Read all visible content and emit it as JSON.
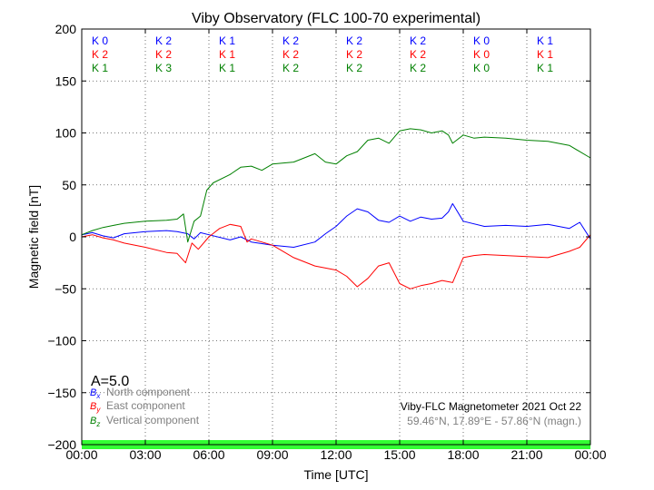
{
  "chart_data": {
    "type": "line",
    "title": "Viby Observatory (FLC 100-70 experimental)",
    "xlabel": "Time [UTC]",
    "ylabel": "Magnetic field [nT]",
    "xlim": [
      0,
      24
    ],
    "ylim": [
      -200,
      200
    ],
    "grid": true,
    "x_ticks": [
      "00:00",
      "03:00",
      "06:00",
      "09:00",
      "12:00",
      "15:00",
      "18:00",
      "21:00",
      "00:00"
    ],
    "y_ticks": [
      "200",
      "150",
      "100",
      "50",
      "0",
      "−50",
      "−100",
      "−150",
      "−200"
    ],
    "k_indices": [
      {
        "color": "#0000ff",
        "values": [
          "K 0",
          "K 2",
          "K 1",
          "K 2",
          "K 2",
          "K 2",
          "K 0",
          "K 1"
        ]
      },
      {
        "color": "#ff0000",
        "values": [
          "K 2",
          "K 2",
          "K 1",
          "K 2",
          "K 2",
          "K 2",
          "K 0",
          "K 1"
        ]
      },
      {
        "color": "#008000",
        "values": [
          "K 1",
          "K 3",
          "K 1",
          "K 2",
          "K 2",
          "K 2",
          "K 0",
          "K 1"
        ]
      }
    ],
    "a_index": "A=5.0",
    "legend": {
      "placement": "bottom-left",
      "items": [
        {
          "symbol": "Bx",
          "label": "North component",
          "color": "#0000ff"
        },
        {
          "symbol": "By",
          "label": "East component",
          "color": "#ff0000"
        },
        {
          "symbol": "Bz",
          "label": "Vertical component",
          "color": "#008000"
        }
      ]
    },
    "annotation": {
      "line1": "Viby-FLC Magnetometer 2021 Oct 22",
      "line2": "59.46°N, 17.89°E - 57.86°N (magn.)"
    },
    "status_band_color": "#33ff33",
    "series": [
      {
        "name": "North component",
        "color": "#0000ff",
        "x": [
          0,
          0.5,
          1,
          1.5,
          2,
          3,
          4,
          4.5,
          5,
          5.3,
          5.6,
          6,
          7,
          7.5,
          8,
          9,
          10,
          11,
          11.5,
          12,
          12.5,
          13,
          13.5,
          14,
          14.5,
          15,
          15.5,
          16,
          16.5,
          17,
          17.3,
          17.5,
          18,
          19,
          20,
          21,
          22,
          23,
          23.5,
          24
        ],
        "y": [
          2,
          4,
          1,
          -1,
          3,
          5,
          6,
          5,
          3,
          -2,
          4,
          2,
          -3,
          0,
          -5,
          -8,
          -10,
          -5,
          3,
          10,
          20,
          27,
          24,
          16,
          14,
          20,
          15,
          19,
          17,
          18,
          24,
          32,
          15,
          10,
          11,
          10,
          12,
          8,
          14,
          -2
        ]
      },
      {
        "name": "East component",
        "color": "#ff0000",
        "x": [
          0,
          0.5,
          1,
          1.5,
          2,
          3,
          4,
          4.5,
          4.9,
          5.2,
          5.5,
          6,
          6.5,
          7,
          7.5,
          7.8,
          8,
          9,
          10,
          11,
          12,
          12.5,
          13,
          13.5,
          14,
          14.5,
          15,
          15.5,
          16,
          16.5,
          17,
          17.5,
          18,
          18.5,
          19,
          20,
          21,
          22,
          23,
          23.5,
          24
        ],
        "y": [
          0,
          2,
          -1,
          -3,
          -6,
          -10,
          -15,
          -16,
          -25,
          -6,
          -12,
          0,
          8,
          12,
          10,
          -5,
          -2,
          -8,
          -20,
          -28,
          -32,
          -38,
          -48,
          -40,
          -28,
          -25,
          -45,
          -50,
          -47,
          -45,
          -42,
          -44,
          -20,
          -18,
          -17,
          -18,
          -19,
          -20,
          -14,
          -10,
          2
        ]
      },
      {
        "name": "Vertical component",
        "color": "#008000",
        "x": [
          0,
          0.5,
          1,
          1.5,
          2,
          3,
          4,
          4.5,
          4.8,
          5,
          5.3,
          5.6,
          5.9,
          6.2,
          7,
          7.5,
          8,
          8.5,
          9,
          10,
          10.5,
          11,
          11.5,
          12,
          12.5,
          13,
          13.5,
          14,
          14.5,
          15,
          15.5,
          16,
          16.5,
          17,
          17.3,
          17.5,
          18,
          18.5,
          19,
          20,
          21,
          22,
          23,
          23.5,
          24
        ],
        "y": [
          2,
          6,
          9,
          11,
          13,
          15,
          16,
          17,
          22,
          -5,
          15,
          20,
          45,
          52,
          60,
          67,
          68,
          64,
          70,
          72,
          76,
          80,
          72,
          70,
          78,
          82,
          93,
          95,
          90,
          102,
          104,
          103,
          100,
          102,
          98,
          90,
          98,
          95,
          96,
          95,
          93,
          92,
          88,
          82,
          76
        ]
      }
    ]
  }
}
